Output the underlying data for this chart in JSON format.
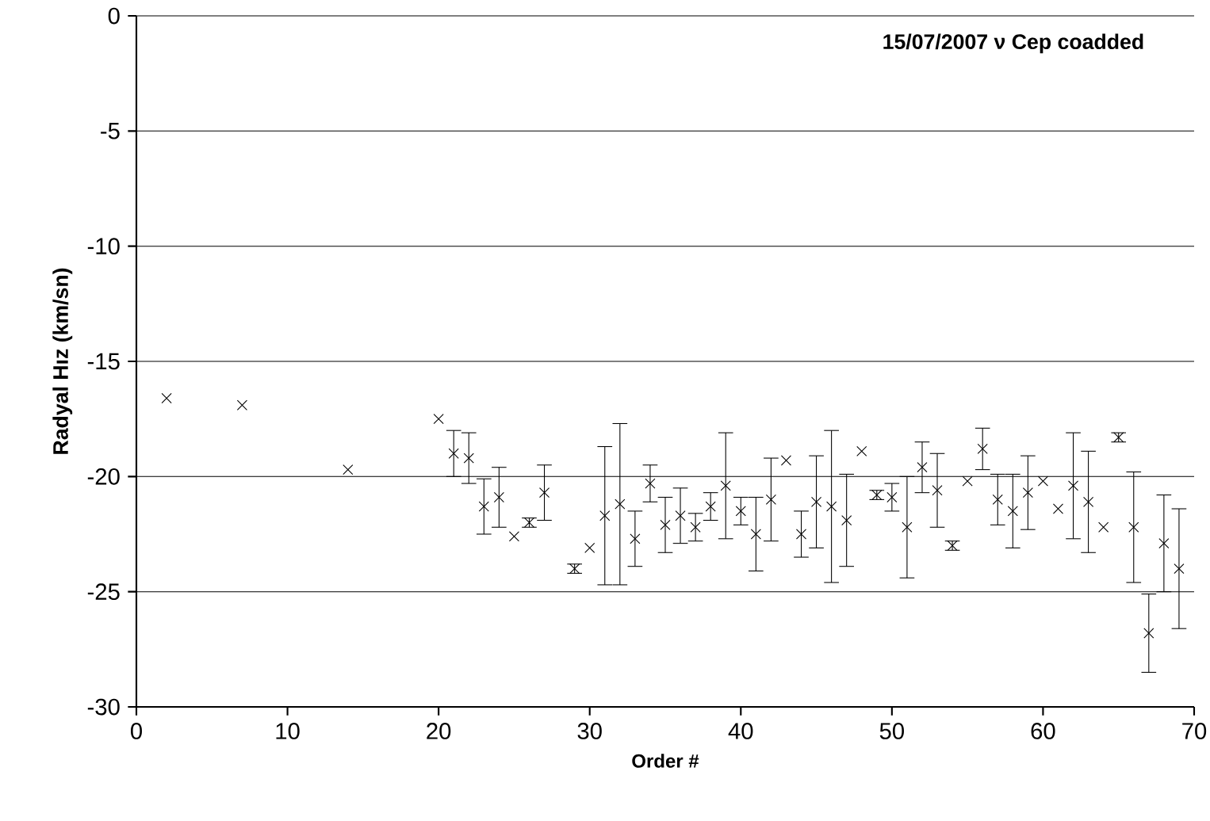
{
  "chart_data": {
    "type": "scatter",
    "title": "15/07/2007  ν Cep coadded",
    "xlabel": "Order #",
    "ylabel": "Radyal Hız (km/sn)",
    "x": [
      2,
      7,
      14,
      20,
      21,
      22,
      23,
      24,
      25,
      26,
      27,
      29,
      30,
      31,
      32,
      33,
      34,
      35,
      36,
      37,
      38,
      39,
      40,
      41,
      42,
      43,
      44,
      45,
      46,
      47,
      48,
      49,
      50,
      51,
      52,
      53,
      54,
      55,
      56,
      57,
      58,
      59,
      60,
      61,
      62,
      63,
      64,
      65,
      66,
      67,
      68,
      69
    ],
    "values": [
      -16.6,
      -16.9,
      -19.7,
      -17.5,
      -19.0,
      -19.2,
      -21.3,
      -20.9,
      -22.6,
      -22.0,
      -20.7,
      -24.0,
      -23.1,
      -21.7,
      -21.2,
      -22.7,
      -20.3,
      -22.1,
      -21.7,
      -22.2,
      -21.3,
      -20.4,
      -21.5,
      -22.5,
      -21.0,
      -19.3,
      -22.5,
      -21.1,
      -21.3,
      -21.9,
      -18.9,
      -20.8,
      -20.9,
      -22.2,
      -19.6,
      -20.6,
      -23.0,
      -20.2,
      -18.8,
      -21.0,
      -21.5,
      -20.7,
      -20.2,
      -21.4,
      -20.4,
      -21.1,
      -22.2,
      -18.3,
      -22.2,
      -26.8,
      -22.9,
      -24.0
    ],
    "errors": [
      null,
      null,
      null,
      null,
      1.0,
      1.1,
      1.2,
      1.3,
      null,
      0.2,
      1.2,
      0.2,
      null,
      3.0,
      3.5,
      1.2,
      0.8,
      1.2,
      1.2,
      0.6,
      0.6,
      2.3,
      0.6,
      1.6,
      1.8,
      null,
      1.0,
      2.0,
      3.3,
      2.0,
      null,
      0.2,
      0.6,
      2.2,
      1.1,
      1.6,
      0.2,
      null,
      0.9,
      1.1,
      1.6,
      1.6,
      null,
      null,
      2.3,
      2.2,
      null,
      0.2,
      2.4,
      1.7,
      2.1,
      2.6
    ],
    "color": "#000000",
    "marker": "cross",
    "xlim": [
      0,
      70
    ],
    "xticks": [
      0,
      10,
      20,
      30,
      40,
      50,
      60,
      70
    ],
    "ylim": [
      -30,
      0
    ],
    "yticks": [
      -30,
      -25,
      -20,
      -15,
      -10,
      -5,
      0
    ],
    "grid": "y"
  }
}
